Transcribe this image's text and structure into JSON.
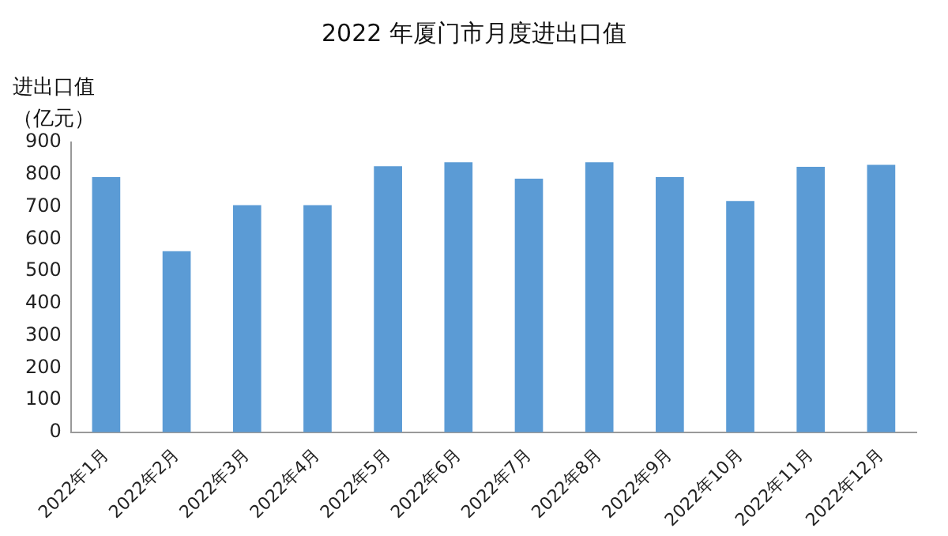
{
  "chart_data": {
    "type": "bar",
    "title": "2022 年厦门市月度进出口值",
    "ylabel": "进出口值（亿元）",
    "categories": [
      "2022年1月",
      "2022年2月",
      "2022年3月",
      "2022年4月",
      "2022年5月",
      "2022年6月",
      "2022年7月",
      "2022年8月",
      "2022年9月",
      "2022年10月",
      "2022年11月",
      "2022年12月"
    ],
    "values": [
      792,
      562,
      705,
      705,
      826,
      838,
      787,
      838,
      792,
      718,
      824,
      830
    ],
    "color": "#5b9bd5",
    "ylim": [
      0,
      900
    ],
    "yticks": [
      0,
      100,
      200,
      300,
      400,
      500,
      600,
      700,
      800,
      900
    ],
    "grid": false,
    "legend": false
  }
}
